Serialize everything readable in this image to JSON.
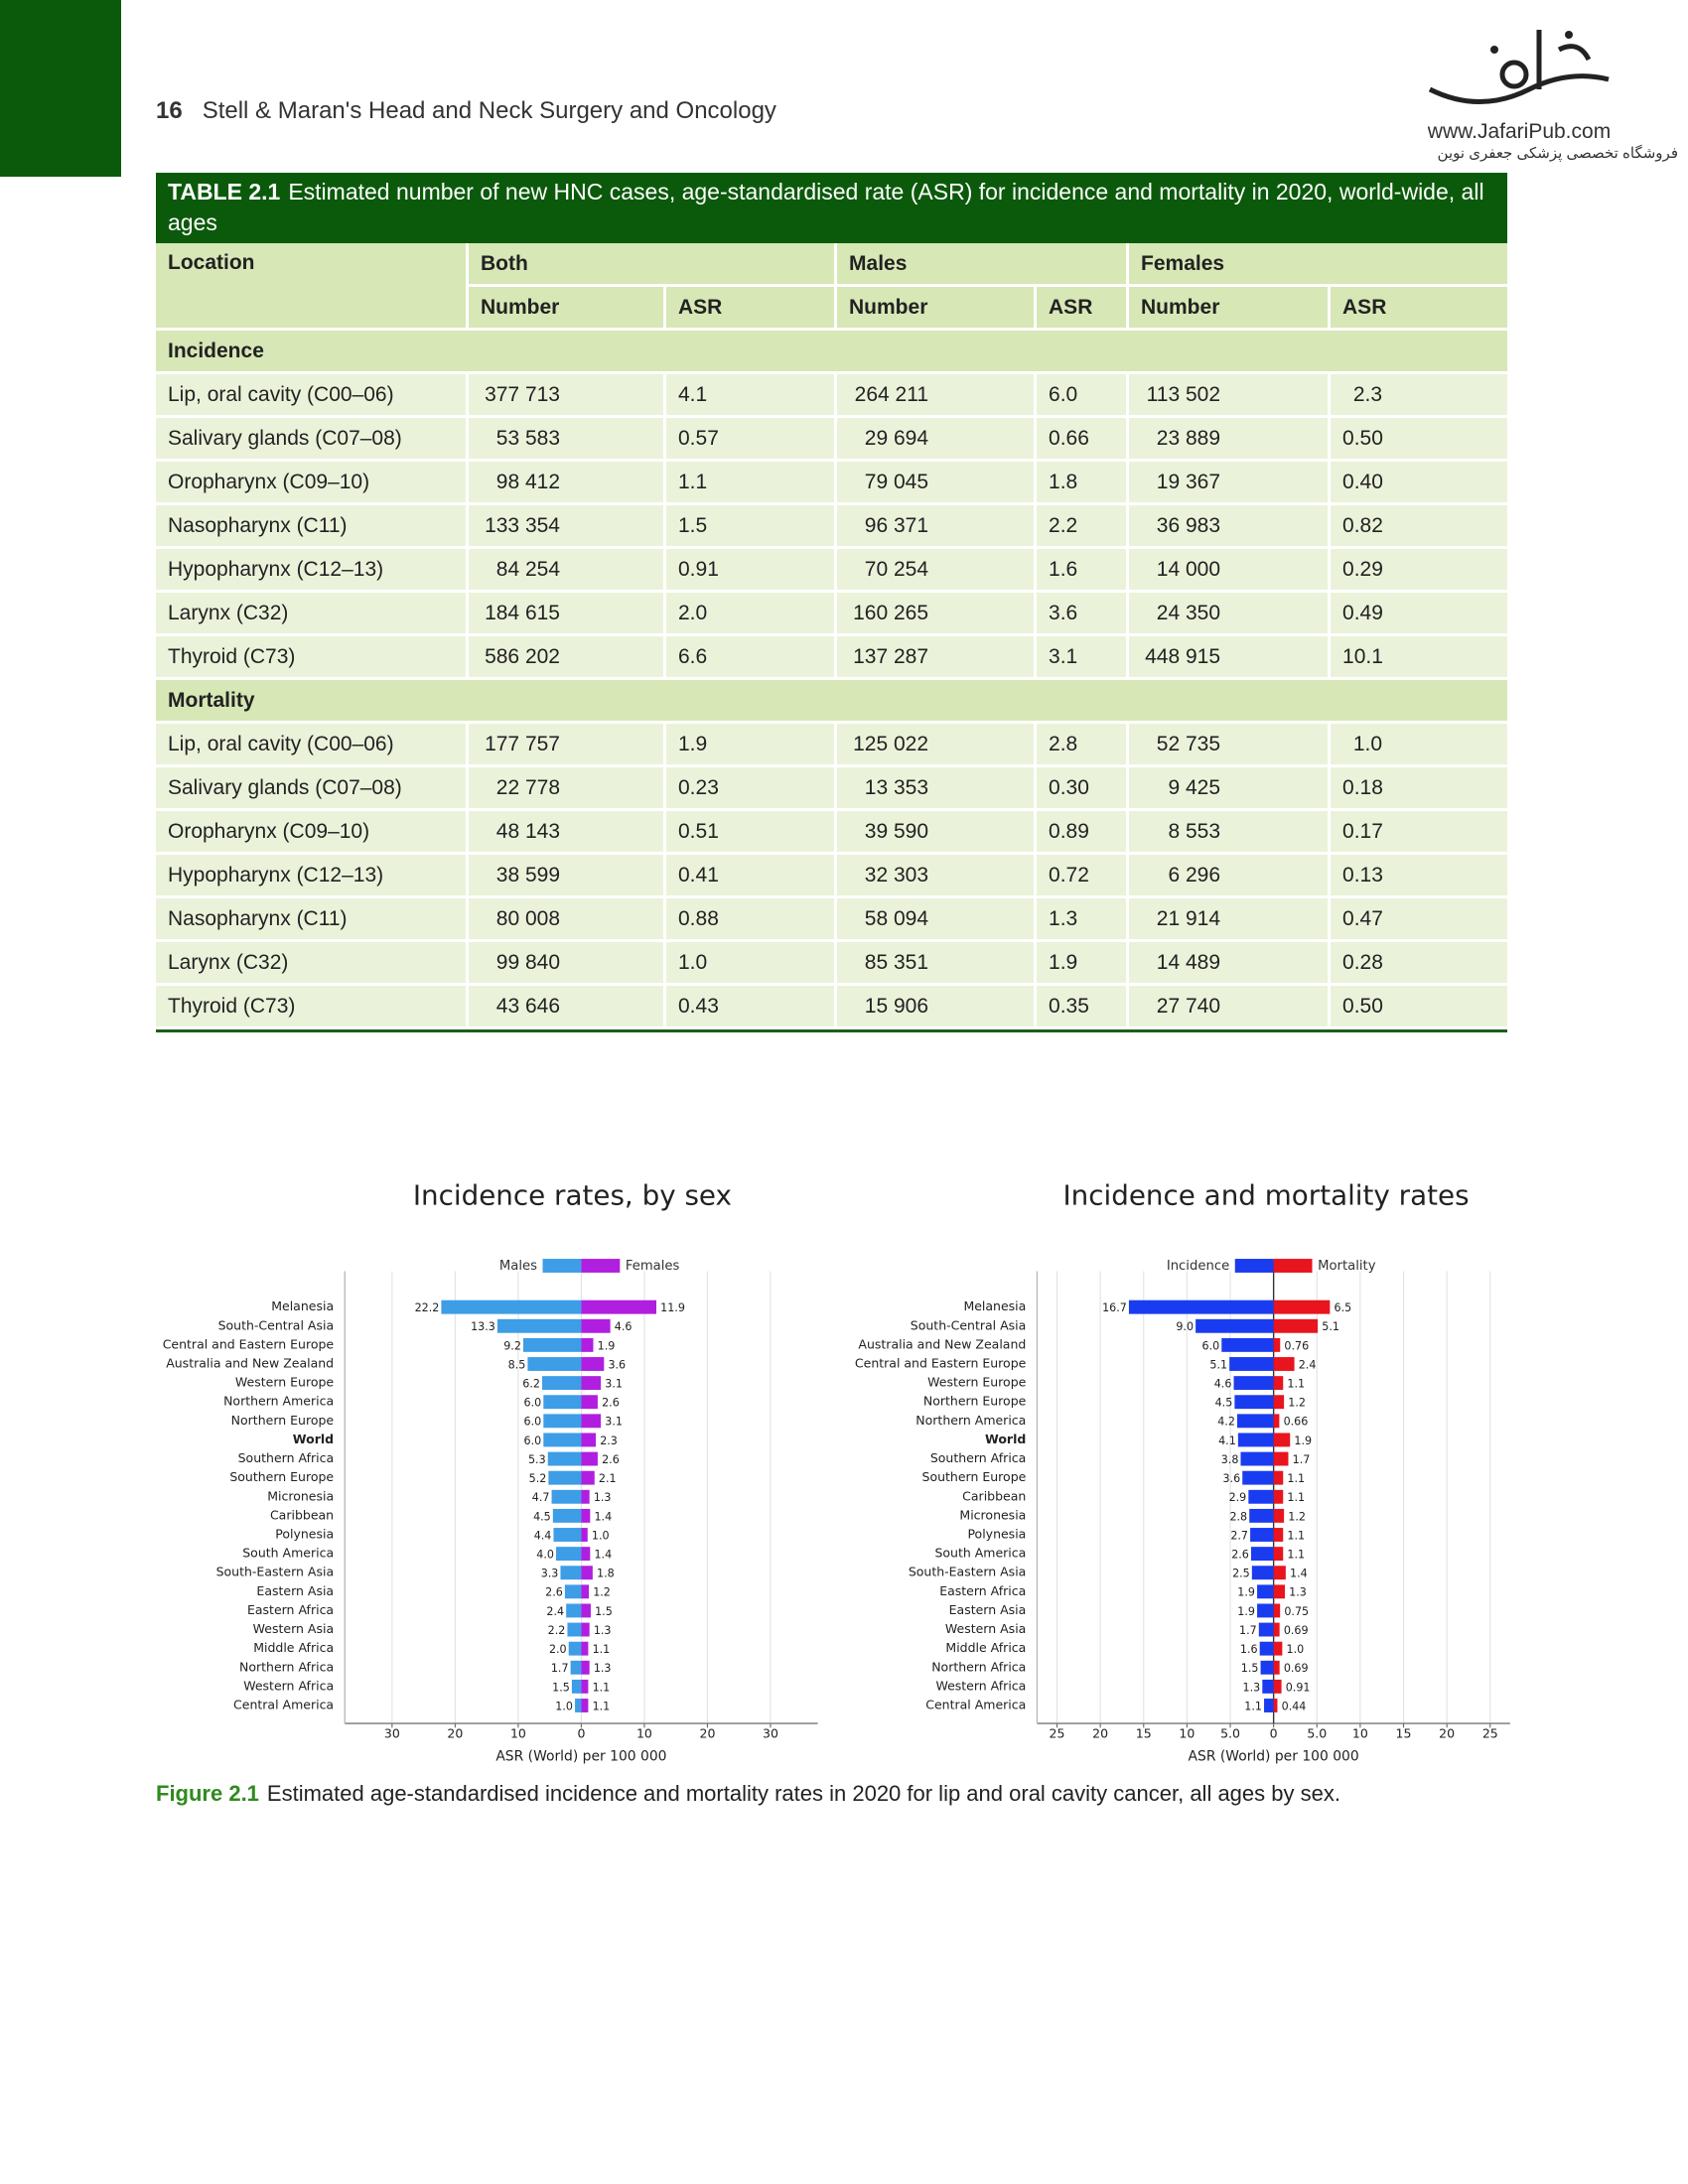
{
  "header": {
    "page_number": "16",
    "running_title": "Stell & Maran's Head and Neck Surgery and Oncology",
    "watermark_url": "www.JafariPub.com",
    "watermark_text": "فروشگاه تخصصی پزشکی جعفری نوین"
  },
  "table": {
    "label": "TABLE 2.1",
    "title": "Estimated number of new HNC cases, age-standardised rate (ASR) for incidence and mortality in 2020, world-wide, all ages",
    "header": [
      "Location",
      "Both",
      "Males",
      "Females"
    ],
    "subheader": [
      "Number",
      "ASR",
      "Number",
      "ASR",
      "Number",
      "ASR"
    ],
    "sections": [
      {
        "name": "Incidence",
        "rows": [
          [
            "Lip, oral cavity (C00–06)",
            "377 713",
            "4.1",
            "264 211",
            "6.0",
            "113 502",
            "2.3"
          ],
          [
            "Salivary glands (C07–08)",
            "53 583",
            "0.57",
            "29 694",
            "0.66",
            "23 889",
            "0.50"
          ],
          [
            "Oropharynx (C09–10)",
            "98 412",
            "1.1",
            "79 045",
            "1.8",
            "19 367",
            "0.40"
          ],
          [
            "Nasopharynx (C11)",
            "133 354",
            "1.5",
            "96 371",
            "2.2",
            "36 983",
            "0.82"
          ],
          [
            "Hypopharynx (C12–13)",
            "84 254",
            "0.91",
            "70 254",
            "1.6",
            "14 000",
            "0.29"
          ],
          [
            "Larynx (C32)",
            "184 615",
            "2.0",
            "160 265",
            "3.6",
            "24 350",
            "0.49"
          ],
          [
            "Thyroid (C73)",
            "586 202",
            "6.6",
            "137 287",
            "3.1",
            "448 915",
            "10.1"
          ]
        ]
      },
      {
        "name": "Mortality",
        "rows": [
          [
            "Lip, oral cavity (C00–06)",
            "177 757",
            "1.9",
            "125 022",
            "2.8",
            "52 735",
            "1.0"
          ],
          [
            "Salivary glands (C07–08)",
            "22 778",
            "0.23",
            "13 353",
            "0.30",
            "9 425",
            "0.18"
          ],
          [
            "Oropharynx (C09–10)",
            "48 143",
            "0.51",
            "39 590",
            "0.89",
            "8 553",
            "0.17"
          ],
          [
            "Hypopharynx (C12–13)",
            "38 599",
            "0.41",
            "32 303",
            "0.72",
            "6 296",
            "0.13"
          ],
          [
            "Nasopharynx (C11)",
            "80 008",
            "0.88",
            "58 094",
            "1.3",
            "21 914",
            "0.47"
          ],
          [
            "Larynx (C32)",
            "99 840",
            "1.0",
            "85 351",
            "1.9",
            "14 489",
            "0.28"
          ],
          [
            "Thyroid (C73)",
            "43 646",
            "0.43",
            "15 906",
            "0.35",
            "27 740",
            "0.50"
          ]
        ]
      }
    ]
  },
  "figure": {
    "label": "Figure 2.1",
    "caption": "Estimated age-standardised incidence and mortality rates in 2020 for lip and oral cavity cancer, all ages by sex."
  },
  "chart_data": [
    {
      "type": "diverging-bar",
      "title": "Incidence rates, by sex",
      "xlabel": "ASR (World) per 100 000",
      "bold_category_index": 7,
      "categories": [
        "Melanesia",
        "South-Central Asia",
        "Central and Eastern Europe",
        "Australia and New Zealand",
        "Western Europe",
        "Northern America",
        "Northern Europe",
        "World",
        "Southern Africa",
        "Southern Europe",
        "Micronesia",
        "Caribbean",
        "Polynesia",
        "South America",
        "South-Eastern Asia",
        "Eastern Asia",
        "Eastern Africa",
        "Western Asia",
        "Middle Africa",
        "Northern Africa",
        "Western Africa",
        "Central America"
      ],
      "series": [
        {
          "name": "Males",
          "color": "#3d9de6",
          "values": [
            -22.2,
            -13.3,
            -9.2,
            -8.5,
            -6.2,
            -6.0,
            -6.0,
            -6.0,
            -5.3,
            -5.2,
            -4.7,
            -4.5,
            -4.4,
            -4.0,
            -3.3,
            -2.6,
            -2.4,
            -2.2,
            -2.0,
            -1.7,
            -1.5,
            -1.0
          ],
          "value_labels": [
            "22.2",
            "13.3",
            "9.2",
            "8.5",
            "6.2",
            "6.0",
            "6.0",
            "6.0",
            "5.3",
            "5.2",
            "4.7",
            "4.5",
            "4.4",
            "4.0",
            "3.3",
            "2.6",
            "2.4",
            "2.2",
            "2.0",
            "1.7",
            "1.5",
            "1.0"
          ]
        },
        {
          "name": "Females",
          "color": "#b01ee0",
          "values": [
            11.9,
            4.6,
            1.9,
            3.6,
            3.1,
            2.6,
            3.1,
            2.3,
            2.6,
            2.1,
            1.3,
            1.4,
            1.0,
            1.4,
            1.8,
            1.2,
            1.5,
            1.3,
            1.1,
            1.3,
            1.1,
            1.1
          ],
          "value_labels": [
            "11.9",
            "4.6",
            "1.9",
            "3.6",
            "3.1",
            "2.6",
            "3.1",
            "2.3",
            "2.6",
            "2.1",
            "1.3",
            "1.4",
            "1.0",
            "1.4",
            "1.8",
            "1.2",
            "1.5",
            "1.3",
            "1.1",
            "1.3",
            "1.1",
            "1.1"
          ]
        }
      ],
      "xlim": [
        -37.5,
        37.5
      ],
      "xticks": [
        {
          "value": -30,
          "label": "30"
        },
        {
          "value": -20,
          "label": "20"
        },
        {
          "value": -10,
          "label": "10"
        },
        0,
        10,
        20,
        30
      ],
      "grid": true
    },
    {
      "type": "diverging-bar",
      "title": "Incidence and mortality rates",
      "xlabel": "ASR (World) per 100 000",
      "bold_category_index": 7,
      "categories": [
        "Melanesia",
        "South-Central Asia",
        "Australia and New Zealand",
        "Central and Eastern Europe",
        "Western Europe",
        "Northern Europe",
        "Northern America",
        "World",
        "Southern Africa",
        "Southern Europe",
        "Caribbean",
        "Micronesia",
        "Polynesia",
        "South America",
        "South-Eastern Asia",
        "Eastern Africa",
        "Eastern Asia",
        "Western Asia",
        "Middle Africa",
        "Northern Africa",
        "Western Africa",
        "Central America"
      ],
      "series": [
        {
          "name": "Incidence",
          "color": "#1a3cf0",
          "values": [
            -16.7,
            -9.0,
            -6.0,
            -5.1,
            -4.6,
            -4.5,
            -4.2,
            -4.1,
            -3.8,
            -3.6,
            -2.9,
            -2.8,
            -2.7,
            -2.6,
            -2.5,
            -1.9,
            -1.9,
            -1.7,
            -1.6,
            -1.5,
            -1.3,
            -1.1
          ],
          "value_labels": [
            "16.7",
            "9.0",
            "6.0",
            "5.1",
            "4.6",
            "4.5",
            "4.2",
            "4.1",
            "3.8",
            "3.6",
            "2.9",
            "2.8",
            "2.7",
            "2.6",
            "2.5",
            "1.9",
            "1.9",
            "1.7",
            "1.6",
            "1.5",
            "1.3",
            "1.1"
          ]
        },
        {
          "name": "Mortality",
          "color": "#e8141e",
          "values": [
            6.5,
            5.1,
            0.76,
            2.4,
            1.1,
            1.2,
            0.66,
            1.9,
            1.7,
            1.1,
            1.1,
            1.2,
            1.1,
            1.1,
            1.4,
            1.3,
            0.75,
            0.69,
            1.0,
            0.69,
            0.91,
            0.44
          ],
          "value_labels": [
            "6.5",
            "5.1",
            "0.76",
            "2.4",
            "1.1",
            "1.2",
            "0.66",
            "1.9",
            "1.7",
            "1.1",
            "1.1",
            "1.2",
            "1.1",
            "1.1",
            "1.4",
            "1.3",
            "0.75",
            "0.69",
            "1.0",
            "0.69",
            "0.91",
            "0.44"
          ]
        }
      ],
      "xlim": [
        -27.3,
        27.3
      ],
      "xticks": [
        {
          "value": -25,
          "label": "25"
        },
        {
          "value": -20,
          "label": "20"
        },
        {
          "value": -15,
          "label": "15"
        },
        {
          "value": -10,
          "label": "10"
        },
        {
          "value": -5,
          "label": "5.0"
        },
        0,
        {
          "value": 5,
          "label": "5.0"
        },
        10,
        15,
        20,
        25
      ],
      "grid": true
    }
  ]
}
